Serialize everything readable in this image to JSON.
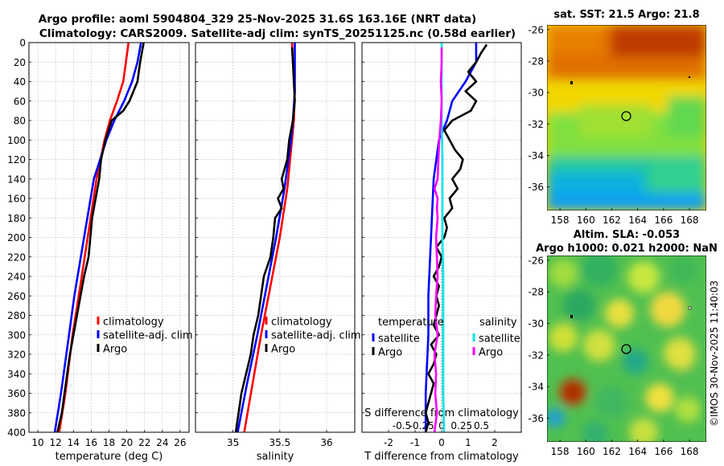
{
  "figure": {
    "title_line1": "Argo profile: aoml 5904804_329 25-Nov-2025 31.6S 163.16E (NRT data)",
    "title_line2": "Climatology: CARS2009. Satellite-adj clim: synTS_20251125.nc (0.58d earlier)",
    "credit": "©IMOS 30-Nov-2025 11:40:03"
  },
  "chart_data": [
    {
      "id": "temperature",
      "type": "line",
      "xlabel": "temperature (deg C)",
      "ylabel": "",
      "xlim": [
        9,
        27
      ],
      "ylim": [
        400,
        0
      ],
      "xticks": [
        10,
        12,
        14,
        16,
        18,
        20,
        22,
        24,
        26
      ],
      "yticks": [
        0,
        20,
        40,
        60,
        80,
        100,
        120,
        140,
        160,
        180,
        200,
        220,
        240,
        260,
        280,
        300,
        320,
        340,
        360,
        380,
        400
      ],
      "grid": true,
      "legend": [
        "climatology",
        "satellite-adj. clim",
        "Argo"
      ],
      "series": [
        {
          "name": "climatology",
          "color": "#ff0000",
          "depth": [
            0,
            20,
            40,
            60,
            80,
            100,
            140,
            200,
            260,
            300,
            360,
            400
          ],
          "values": [
            20.2,
            19.9,
            19.6,
            18.9,
            18.1,
            17.5,
            16.6,
            15.6,
            14.6,
            13.9,
            13.1,
            12.4
          ]
        },
        {
          "name": "satellite-adj. clim",
          "color": "#0000ff",
          "depth": [
            0,
            20,
            40,
            60,
            80,
            100,
            140,
            200,
            260,
            300,
            360,
            400
          ],
          "values": [
            21.6,
            21.2,
            20.6,
            19.7,
            18.6,
            17.7,
            16.3,
            15.2,
            14.1,
            13.5,
            12.6,
            11.9
          ]
        },
        {
          "name": "Argo",
          "color": "#000000",
          "depth": [
            0,
            10,
            20,
            40,
            60,
            70,
            80,
            100,
            120,
            140,
            160,
            180,
            200,
            220,
            240,
            260,
            280,
            300,
            320,
            340,
            360,
            380,
            400
          ],
          "values": [
            21.9,
            21.7,
            21.5,
            21.2,
            20.3,
            19.6,
            18.3,
            17.6,
            17.1,
            16.9,
            16.5,
            16.1,
            15.9,
            15.7,
            15.2,
            14.8,
            14.4,
            14.0,
            13.6,
            13.3,
            13.0,
            12.7,
            12.2
          ]
        }
      ]
    },
    {
      "id": "salinity",
      "type": "line",
      "xlabel": "salinity",
      "xlim": [
        34.6,
        36.3
      ],
      "ylim": [
        400,
        0
      ],
      "xticks": [
        35,
        35.5,
        36
      ],
      "xticklabels": [
        "35",
        "35.5",
        "36"
      ],
      "grid": true,
      "legend": [
        "climatology",
        "satellite-adj. clim",
        "Argo"
      ],
      "series": [
        {
          "name": "climatology",
          "color": "#ff0000",
          "depth": [
            0,
            20,
            50,
            80,
            100,
            150,
            200,
            250,
            300,
            350,
            400
          ],
          "values": [
            35.63,
            35.64,
            35.66,
            35.65,
            35.63,
            35.58,
            35.5,
            35.4,
            35.3,
            35.21,
            35.12
          ]
        },
        {
          "name": "satellite-adj. clim",
          "color": "#0000ff",
          "depth": [
            0,
            20,
            50,
            80,
            100,
            150,
            200,
            250,
            300,
            350,
            400
          ],
          "values": [
            35.66,
            35.66,
            35.66,
            35.64,
            35.62,
            35.55,
            35.46,
            35.36,
            35.26,
            35.15,
            35.05
          ]
        },
        {
          "name": "Argo",
          "color": "#000000",
          "depth": [
            5,
            20,
            40,
            60,
            80,
            100,
            120,
            140,
            150,
            160,
            170,
            180,
            200,
            220,
            240,
            260,
            280,
            300,
            320,
            340,
            360,
            380,
            400
          ],
          "values": [
            35.63,
            35.64,
            35.65,
            35.66,
            35.64,
            35.6,
            35.58,
            35.52,
            35.54,
            35.48,
            35.52,
            35.45,
            35.43,
            35.4,
            35.33,
            35.3,
            35.27,
            35.22,
            35.19,
            35.14,
            35.09,
            35.06,
            35.03
          ]
        }
      ]
    },
    {
      "id": "difference",
      "type": "line",
      "xlabel": "T difference from climatology",
      "xlabel_top": "S difference from climatology",
      "xlim": [
        -3,
        3
      ],
      "s_xlim": [
        -1,
        1
      ],
      "ylim": [
        400,
        0
      ],
      "xticks": [
        -2,
        -1,
        0,
        1,
        2
      ],
      "xticklabels": [
        "-2",
        "-1",
        "0",
        "1",
        "2"
      ],
      "s_xticks": [
        -0.5,
        -0.25,
        0,
        0.25,
        0.5
      ],
      "s_xticklabels": [
        "-0.5",
        "-0.25",
        "0",
        "0.25",
        "0.5"
      ],
      "grid": true,
      "legend_temperature_header": "temperature",
      "legend_salinity_header": "salinity",
      "legend_temperature": [
        "satellite",
        "Argo"
      ],
      "legend_salinity": [
        "satellite",
        "Argo"
      ],
      "series": [
        {
          "name": "temperature satellite",
          "color": "#0000ff",
          "axis": "T",
          "depth": [
            0,
            20,
            40,
            60,
            80,
            100,
            140,
            200,
            260,
            300,
            360,
            400
          ],
          "values": [
            1.3,
            1.3,
            0.9,
            0.4,
            0.2,
            -0.1,
            -0.3,
            -0.4,
            -0.5,
            -0.5,
            -0.6,
            -0.6
          ]
        },
        {
          "name": "temperature Argo",
          "color": "#000000",
          "axis": "T",
          "depth": [
            2,
            10,
            20,
            30,
            40,
            50,
            60,
            70,
            80,
            90,
            100,
            110,
            120,
            130,
            140,
            150,
            160,
            170,
            180,
            190,
            200,
            210,
            220,
            230,
            240,
            250,
            260,
            270,
            280,
            290,
            300,
            310,
            320,
            330,
            340,
            350,
            360,
            370,
            380,
            390,
            400
          ],
          "values": [
            1.7,
            1.5,
            1.3,
            1.0,
            1.3,
            0.9,
            1.3,
            1.1,
            0.4,
            0.1,
            0.3,
            0.5,
            0.8,
            0.7,
            0.4,
            0.6,
            0.3,
            0.4,
            0.1,
            0.2,
            0.1,
            -0.2,
            0.0,
            -0.1,
            -0.3,
            -0.1,
            -0.2,
            -0.1,
            -0.2,
            -0.3,
            -0.1,
            -0.4,
            -0.2,
            -0.3,
            -0.5,
            -0.3,
            -0.4,
            -0.5,
            -0.6,
            -0.5,
            -0.6
          ]
        },
        {
          "name": "salinity satellite",
          "color": "#00e5ee",
          "axis": "S",
          "depth": [
            0,
            40,
            80,
            120,
            160,
            200,
            240,
            280,
            320,
            360,
            400
          ],
          "values": [
            0.0,
            0.0,
            0.0,
            0.01,
            0.01,
            0.01,
            0.02,
            0.02,
            0.02,
            0.02,
            0.03
          ]
        },
        {
          "name": "salinity Argo",
          "color": "#ff00ff",
          "axis": "S",
          "depth": [
            5,
            20,
            40,
            60,
            80,
            100,
            120,
            140,
            150,
            160,
            170,
            180,
            200,
            220,
            240,
            260,
            280,
            300,
            320,
            340,
            360,
            380,
            400
          ],
          "values": [
            0.0,
            0.0,
            -0.01,
            0.0,
            -0.01,
            -0.03,
            -0.04,
            -0.05,
            -0.09,
            -0.05,
            -0.06,
            -0.05,
            -0.07,
            -0.06,
            -0.05,
            -0.07,
            -0.08,
            -0.05,
            -0.09,
            -0.07,
            -0.08,
            -0.06,
            -0.09
          ]
        }
      ]
    },
    {
      "id": "sst_map",
      "type": "heatmap",
      "title": "sat. SST: 21.5 Argo: 21.8",
      "xticks": [
        158,
        160,
        162,
        164,
        166,
        168
      ],
      "yticks": [
        -26,
        -28,
        -30,
        -32,
        -34,
        -36
      ],
      "xlim": [
        157,
        169.3
      ],
      "ylim": [
        -37.5,
        -25.7
      ],
      "profile_location": {
        "lon": 163.16,
        "lat": -31.6
      }
    },
    {
      "id": "sla_map",
      "type": "heatmap",
      "title_line1": "Altim. SLA: -0.053",
      "title_line2": "Argo h1000: 0.021 h2000: NaN",
      "xticks": [
        158,
        160,
        162,
        164,
        166,
        168
      ],
      "yticks": [
        -26,
        -28,
        -30,
        -32,
        -34,
        -36
      ],
      "xlim": [
        157,
        169.3
      ],
      "ylim": [
        -37.5,
        -25.7
      ],
      "profile_location": {
        "lon": 163.16,
        "lat": -31.6
      }
    }
  ]
}
